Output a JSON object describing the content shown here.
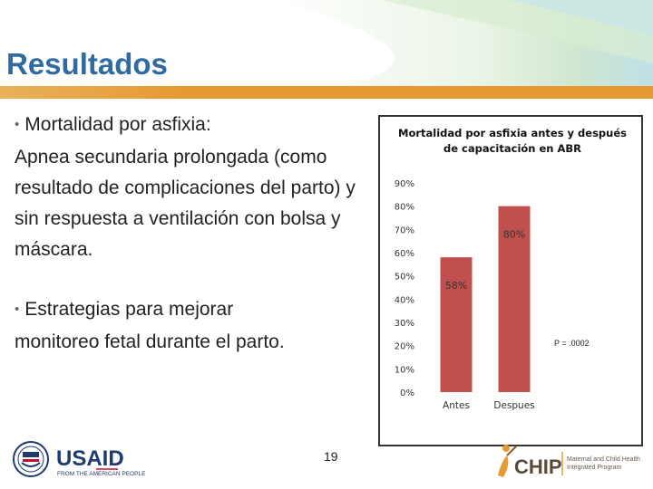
{
  "slide": {
    "title": "Resultados",
    "page_number": "19",
    "colors": {
      "title": "#2f6aa0",
      "title_bar": "#e79a32",
      "bar": "#c0504d"
    }
  },
  "bullets": [
    {
      "lead": "Mortalidad por asfixia:",
      "body": "Apnea secundaria prolongada (como resultado de complicaciones del parto) y sin respuesta a ventilación con bolsa y máscara."
    },
    {
      "lead": "Estrategias para mejorar",
      "body": "monitoreo fetal durante el parto."
    }
  ],
  "chart_data": {
    "type": "bar",
    "title_lines": [
      "Mortalidad por asfixia antes y después",
      "de capacitación en ABR"
    ],
    "categories": [
      "Antes",
      "Despues"
    ],
    "values": [
      58,
      80
    ],
    "data_labels": [
      "58%",
      "80%"
    ],
    "yticks": [
      "0%",
      "10%",
      "20%",
      "30%",
      "40%",
      "50%",
      "60%",
      "70%",
      "80%",
      "90%"
    ],
    "ylim": [
      0,
      90
    ],
    "annotation": "P = .0002",
    "grid": false
  },
  "logos": {
    "usaid": {
      "name": "USAID",
      "tagline": "FROM THE AMERICAN PEOPLE"
    },
    "chip": {
      "name": "CHIP",
      "tagline_lines": [
        "Maternal and Child Health",
        "Integrated Program"
      ]
    }
  }
}
